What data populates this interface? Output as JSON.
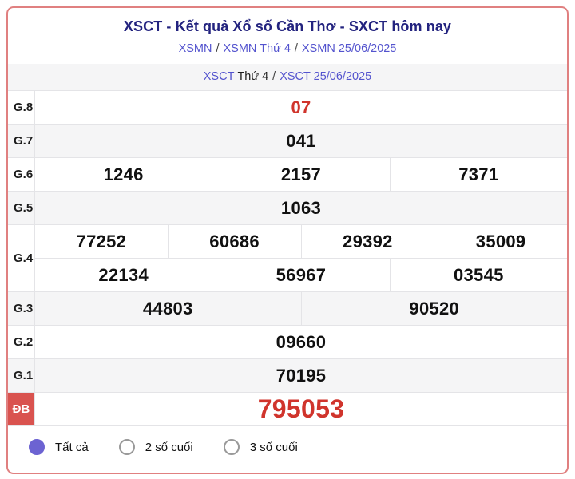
{
  "header": {
    "title": "XSCT - Kết quả Xổ số Cần Thơ - SXCT hôm nay",
    "separator": "/",
    "nav_top": {
      "link1": "XSMN",
      "link2": "XSMN Thứ 4",
      "link3": "XSMN 25/06/2025"
    },
    "nav_sub": {
      "link1": "XSCT",
      "text": "Thứ 4",
      "link2": "XSCT 25/06/2025"
    }
  },
  "results": {
    "rows": [
      {
        "label": "G.8",
        "values": [
          "07"
        ],
        "highlight": true
      },
      {
        "label": "G.7",
        "values": [
          "041"
        ]
      },
      {
        "label": "G.6",
        "values": [
          "1246",
          "2157",
          "7371"
        ]
      },
      {
        "label": "G.5",
        "values": [
          "1063"
        ]
      },
      {
        "label": "G.4",
        "lines": [
          [
            "77252",
            "60686",
            "29392",
            "35009"
          ],
          [
            "22134",
            "56967",
            "03545"
          ]
        ]
      },
      {
        "label": "G.3",
        "values": [
          "44803",
          "90520"
        ]
      },
      {
        "label": "G.2",
        "values": [
          "09660"
        ]
      },
      {
        "label": "G.1",
        "values": [
          "70195"
        ]
      },
      {
        "label": "ĐB",
        "values": [
          "795053"
        ],
        "special": true
      }
    ]
  },
  "filters": [
    {
      "label": "Tất cả",
      "selected": true
    },
    {
      "label": "2 số cuối",
      "selected": false
    },
    {
      "label": "3 số cuối",
      "selected": false
    }
  ],
  "colors": {
    "accent_red": "#d0342c",
    "special_bg": "#d9534f",
    "link": "#5353ce",
    "title": "#23237f",
    "radio_selected": "#6c63d2",
    "card_border": "#e08080",
    "row_alt_bg": "#f5f5f6",
    "grid_line": "#e4e4e7"
  }
}
